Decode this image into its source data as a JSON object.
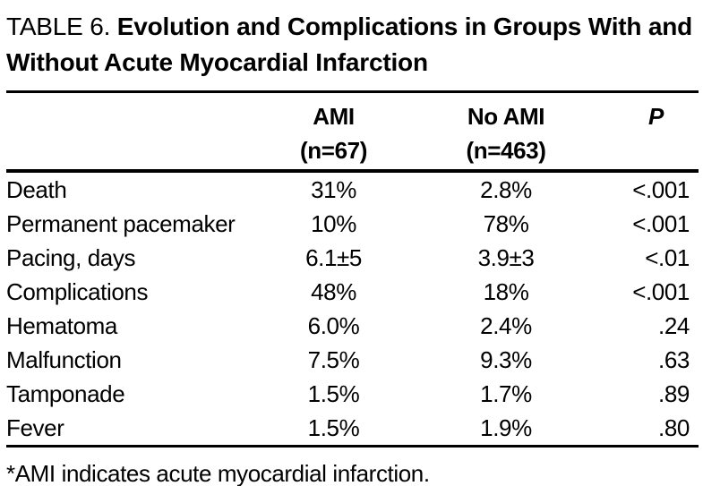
{
  "page": {
    "background": "#ffffff",
    "text_color": "#000000",
    "rule_color": "#000000"
  },
  "header": {
    "label_prefix": "TABLE 6.",
    "title": "Evolution and Complications in Groups With and Without Acute Myocardial Infarction"
  },
  "table": {
    "columns": [
      {
        "line1": "AMI",
        "line2": "(n=67)"
      },
      {
        "line1": "No AMI",
        "line2": "(n=463)"
      },
      {
        "line1": "P",
        "line2": ""
      }
    ],
    "rows": [
      {
        "label": "Death",
        "ami": "31%",
        "no_ami": "2.8%",
        "p": "<.001"
      },
      {
        "label": "Permanent pacemaker",
        "ami": "10%",
        "no_ami": "78%",
        "p": "<.001"
      },
      {
        "label": "Pacing, days",
        "ami": "6.1±5",
        "no_ami": "3.9±3",
        "p": "<.01"
      },
      {
        "label": "Complications",
        "ami": "48%",
        "no_ami": "18%",
        "p": "<.001"
      },
      {
        "label": "Hematoma",
        "ami": "6.0%",
        "no_ami": "2.4%",
        "p": ".24"
      },
      {
        "label": "Malfunction",
        "ami": "7.5%",
        "no_ami": "9.3%",
        "p": ".63"
      },
      {
        "label": "Tamponade",
        "ami": "1.5%",
        "no_ami": "1.7%",
        "p": ".89"
      },
      {
        "label": "Fever",
        "ami": "1.5%",
        "no_ami": "1.9%",
        "p": ".80"
      }
    ],
    "footnote": "*AMI indicates acute myocardial infarction."
  },
  "chart_data": {
    "type": "table",
    "title": "TABLE 6. Evolution and Complications in Groups With and Without Acute Myocardial Infarction",
    "columns": [
      "",
      "AMI (n=67)",
      "No AMI (n=463)",
      "P"
    ],
    "rows": [
      [
        "Death",
        "31%",
        "2.8%",
        "<.001"
      ],
      [
        "Permanent pacemaker",
        "10%",
        "78%",
        "<.001"
      ],
      [
        "Pacing, days",
        "6.1±5",
        "3.9±3",
        "<.01"
      ],
      [
        "Complications",
        "48%",
        "18%",
        "<.001"
      ],
      [
        "Hematoma",
        "6.0%",
        "2.4%",
        ".24"
      ],
      [
        "Malfunction",
        "7.5%",
        "9.3%",
        ".63"
      ],
      [
        "Tamponade",
        "1.5%",
        "1.7%",
        ".89"
      ],
      [
        "Fever",
        "1.5%",
        "1.9%",
        ".80"
      ]
    ],
    "footnote": "*AMI indicates acute myocardial infarction."
  }
}
